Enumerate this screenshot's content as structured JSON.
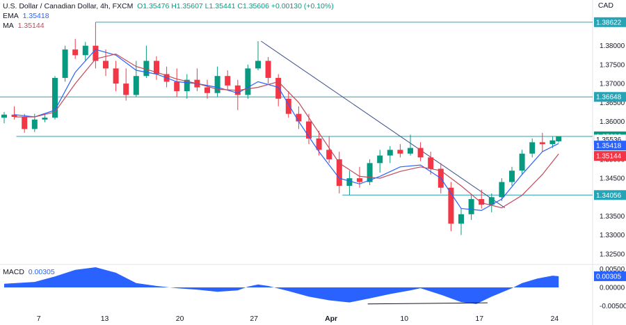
{
  "header": {
    "symbol": "U.S. Dollar / Canadian Dollar, 4h, FXCM",
    "ohlc": "O1.35476  H1.35607  L1.35441  C1.35606  +0.00130 (+0.10%)",
    "ema_label": "EMA",
    "ema_value": "1.35418",
    "ma_label": "MA",
    "ma_value": "1.35144",
    "currency": "CAD"
  },
  "macd": {
    "label": "MACD",
    "value": "0.00305"
  },
  "colors": {
    "up": "#089981",
    "down": "#f23645",
    "ema": "#2962ff",
    "ma": "#c2485a",
    "hline": "#26a3b5",
    "trend": "#3b4f8c",
    "macd": "#2962ff"
  },
  "chart_data": {
    "type": "candlestick",
    "ylim": [
      1.3226,
      1.3906
    ],
    "yticks": [
      "1.38000",
      "1.37500",
      "1.37000",
      "1.36500",
      "1.36000",
      "1.35500",
      "1.35000",
      "1.34500",
      "1.34000",
      "1.33500",
      "1.33000",
      "1.32500"
    ],
    "x_ticks": [
      "7",
      "13",
      "20",
      "27",
      "Apr",
      "10",
      "17",
      "24"
    ],
    "levels": [
      {
        "value": 1.38622,
        "label": "1.38622"
      },
      {
        "value": 1.36648,
        "label": "1.36648"
      },
      {
        "value": 1.35606,
        "label": "1.35606"
      },
      {
        "value": 1.34056,
        "label": "1.34056"
      }
    ],
    "price_tags": [
      {
        "value": 1.35536,
        "label": "1.35536"
      },
      {
        "value": 1.35418,
        "label": "1.35418"
      },
      {
        "value": 1.35144,
        "label": "1.35144"
      }
    ],
    "trendline": [
      {
        "x": 25.3,
        "y": 1.3812
      },
      {
        "x": 49.3,
        "y": 1.3372
      }
    ],
    "divergence_line": [
      {
        "x": 35.8,
        "y": -0.0045
      },
      {
        "x": 47.6,
        "y": -0.0042
      }
    ],
    "series": [
      {
        "name": "EMA",
        "values": [
          [
            1,
            1.3618
          ],
          [
            3,
            1.3612
          ],
          [
            5,
            1.363
          ],
          [
            7,
            1.373
          ],
          [
            9,
            1.379
          ],
          [
            11,
            1.3775
          ],
          [
            13,
            1.3735
          ],
          [
            15,
            1.3725
          ],
          [
            17,
            1.3705
          ],
          [
            19,
            1.37
          ],
          [
            21,
            1.369
          ],
          [
            23,
            1.3675
          ],
          [
            25,
            1.3705
          ],
          [
            27,
            1.369
          ],
          [
            29,
            1.36
          ],
          [
            31,
            1.352
          ],
          [
            33,
            1.345
          ],
          [
            35,
            1.3435
          ],
          [
            37,
            1.3455
          ],
          [
            39,
            1.348
          ],
          [
            41,
            1.3485
          ],
          [
            43,
            1.345
          ],
          [
            45,
            1.337
          ],
          [
            47,
            1.3365
          ],
          [
            49,
            1.3395
          ],
          [
            51,
            1.346
          ],
          [
            53,
            1.352
          ],
          [
            54.6,
            1.35418
          ]
        ]
      },
      {
        "name": "MA",
        "values": [
          [
            1,
            1.3612
          ],
          [
            3,
            1.3612
          ],
          [
            5,
            1.3625
          ],
          [
            7,
            1.37
          ],
          [
            9,
            1.3765
          ],
          [
            11,
            1.3778
          ],
          [
            13,
            1.3745
          ],
          [
            15,
            1.373
          ],
          [
            17,
            1.3712
          ],
          [
            19,
            1.37
          ],
          [
            21,
            1.3685
          ],
          [
            23,
            1.3682
          ],
          [
            25,
            1.369
          ],
          [
            27,
            1.3705
          ],
          [
            29,
            1.365
          ],
          [
            31,
            1.357
          ],
          [
            33,
            1.349
          ],
          [
            35,
            1.3455
          ],
          [
            37,
            1.345
          ],
          [
            39,
            1.3468
          ],
          [
            41,
            1.348
          ],
          [
            43,
            1.347
          ],
          [
            45,
            1.343
          ],
          [
            47,
            1.3385
          ],
          [
            49,
            1.3372
          ],
          [
            51,
            1.3405
          ],
          [
            53,
            1.346
          ],
          [
            54.6,
            1.35144
          ]
        ]
      }
    ],
    "candles": [
      [
        0,
        1.361,
        1.3625,
        1.3595,
        1.3618
      ],
      [
        1,
        1.3618,
        1.364,
        1.3605,
        1.3612
      ],
      [
        2,
        1.3612,
        1.362,
        1.357,
        1.358
      ],
      [
        3,
        1.358,
        1.362,
        1.3572,
        1.3605
      ],
      [
        4,
        1.3605,
        1.3618,
        1.3598,
        1.361
      ],
      [
        5,
        1.361,
        1.372,
        1.3605,
        1.3715
      ],
      [
        6,
        1.3715,
        1.38,
        1.3705,
        1.379
      ],
      [
        7,
        1.379,
        1.3818,
        1.3765,
        1.3775
      ],
      [
        8,
        1.3775,
        1.381,
        1.376,
        1.38
      ],
      [
        9,
        1.38,
        1.3862,
        1.374,
        1.376
      ],
      [
        10,
        1.376,
        1.379,
        1.372,
        1.374
      ],
      [
        11,
        1.374,
        1.376,
        1.368,
        1.37
      ],
      [
        12,
        1.37,
        1.374,
        1.3655,
        1.367
      ],
      [
        13,
        1.367,
        1.376,
        1.3665,
        1.372
      ],
      [
        14,
        1.372,
        1.38,
        1.3715,
        1.376
      ],
      [
        15,
        1.376,
        1.3772,
        1.371,
        1.3725
      ],
      [
        16,
        1.3725,
        1.3745,
        1.369,
        1.3705
      ],
      [
        17,
        1.3705,
        1.374,
        1.3665,
        1.368
      ],
      [
        18,
        1.368,
        1.3725,
        1.366,
        1.371
      ],
      [
        19,
        1.371,
        1.374,
        1.368,
        1.369
      ],
      [
        20,
        1.369,
        1.371,
        1.366,
        1.3675
      ],
      [
        21,
        1.3675,
        1.3745,
        1.3665,
        1.372
      ],
      [
        22,
        1.372,
        1.3735,
        1.3685,
        1.3695
      ],
      [
        23,
        1.3695,
        1.371,
        1.363,
        1.367
      ],
      [
        24,
        1.367,
        1.375,
        1.366,
        1.374
      ],
      [
        25,
        1.374,
        1.3812,
        1.3735,
        1.376
      ],
      [
        26,
        1.376,
        1.377,
        1.37,
        1.3715
      ],
      [
        27,
        1.3715,
        1.3725,
        1.364,
        1.366
      ],
      [
        28,
        1.366,
        1.368,
        1.361,
        1.362
      ],
      [
        29,
        1.362,
        1.364,
        1.358,
        1.36
      ],
      [
        30,
        1.36,
        1.362,
        1.354,
        1.3555
      ],
      [
        31,
        1.3555,
        1.3575,
        1.351,
        1.3525
      ],
      [
        32,
        1.3525,
        1.356,
        1.349,
        1.35
      ],
      [
        33,
        1.35,
        1.352,
        1.341,
        1.343
      ],
      [
        34,
        1.343,
        1.347,
        1.3405,
        1.345
      ],
      [
        35,
        1.345,
        1.348,
        1.3425,
        1.344
      ],
      [
        36,
        1.344,
        1.35,
        1.3432,
        1.349
      ],
      [
        37,
        1.349,
        1.3525,
        1.3465,
        1.351
      ],
      [
        38,
        1.351,
        1.3535,
        1.349,
        1.3525
      ],
      [
        39,
        1.3525,
        1.354,
        1.3505,
        1.3515
      ],
      [
        40,
        1.3515,
        1.3565,
        1.351,
        1.353
      ],
      [
        41,
        1.353,
        1.3545,
        1.3495,
        1.3505
      ],
      [
        42,
        1.3505,
        1.352,
        1.346,
        1.3475
      ],
      [
        43,
        1.3475,
        1.349,
        1.341,
        1.3425
      ],
      [
        44,
        1.3425,
        1.344,
        1.331,
        1.333
      ],
      [
        45,
        1.333,
        1.337,
        1.33,
        1.3355
      ],
      [
        46,
        1.3355,
        1.3405,
        1.334,
        1.3395
      ],
      [
        47,
        1.3395,
        1.342,
        1.337,
        1.338
      ],
      [
        48,
        1.338,
        1.341,
        1.336,
        1.34
      ],
      [
        49,
        1.34,
        1.345,
        1.339,
        1.344
      ],
      [
        50,
        1.344,
        1.348,
        1.343,
        1.347
      ],
      [
        51,
        1.347,
        1.3525,
        1.346,
        1.3515
      ],
      [
        52,
        1.3515,
        1.3555,
        1.3505,
        1.3545
      ],
      [
        53,
        1.3545,
        1.357,
        1.352,
        1.354
      ],
      [
        54,
        1.354,
        1.356,
        1.353,
        1.355
      ],
      [
        54.6,
        1.35476,
        1.35607,
        1.35441,
        1.35606
      ]
    ],
    "macd_values": [
      [
        0,
        0.001
      ],
      [
        3,
        0.0015
      ],
      [
        5,
        0.003
      ],
      [
        7,
        0.0048
      ],
      [
        9,
        0.0055
      ],
      [
        11,
        0.004
      ],
      [
        13,
        0.0012
      ],
      [
        15,
        0.0004
      ],
      [
        17,
        -0.0002
      ],
      [
        19,
        -0.0006
      ],
      [
        21,
        -0.0012
      ],
      [
        23,
        -0.0008
      ],
      [
        24,
        0.0002
      ],
      [
        25,
        0.0008
      ],
      [
        26,
        0.0004
      ],
      [
        28,
        -0.001
      ],
      [
        30,
        -0.0025
      ],
      [
        32,
        -0.0035
      ],
      [
        34,
        -0.0041
      ],
      [
        36,
        -0.003
      ],
      [
        38,
        -0.0018
      ],
      [
        40,
        -0.0008
      ],
      [
        41,
        -0.0002
      ],
      [
        43,
        -0.002
      ],
      [
        45,
        -0.004
      ],
      [
        46.5,
        -0.0045
      ],
      [
        48,
        -0.0025
      ],
      [
        50,
        -0.0002
      ],
      [
        51,
        0.0012
      ],
      [
        52.5,
        0.0024
      ],
      [
        54,
        0.0032
      ],
      [
        54.6,
        0.00305
      ]
    ],
    "macd_ylim": [
      -0.0055,
      0.0055
    ],
    "macd_yticks": [
      "0.00500",
      "0.00000",
      "-0.00500"
    ]
  }
}
